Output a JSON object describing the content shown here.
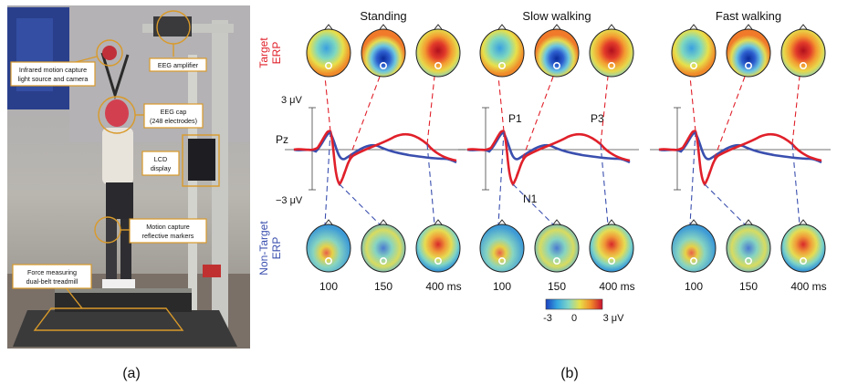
{
  "panel_a": {
    "caption": "(a)",
    "callouts": {
      "infrared": [
        "Infrared motion capture",
        "light source and camera"
      ],
      "eeg_amplifier": [
        "EEG amplifier"
      ],
      "eeg_cap": [
        "EEG cap",
        "(248 electrodes)"
      ],
      "lcd": [
        "LCD",
        "display"
      ],
      "motion_markers": [
        "Motion capture",
        "reflective markers"
      ],
      "treadmill": [
        "Force measuring",
        "dual-belt treadmill"
      ]
    }
  },
  "panel_b": {
    "caption": "(b)",
    "conditions": [
      "Standing",
      "Slow walking",
      "Fast walking"
    ],
    "row_label_target": [
      "Target",
      "ERP"
    ],
    "row_label_nontarget": [
      "Non-Target",
      "ERP"
    ],
    "y_top_label": "3 μV",
    "y_bottom_label": "−3 μV",
    "channel_label": "Pz",
    "component_labels": {
      "p1": "P1",
      "n1": "N1",
      "p3": "P3"
    },
    "time_labels": [
      "100",
      "150",
      "400 ms"
    ],
    "colorbar": {
      "min_label": "-3",
      "mid_label": "0",
      "max_label": "3 μV",
      "colors": [
        "#1a3fbf",
        "#36a7e0",
        "#7fd6c8",
        "#e8e04a",
        "#f08a2a",
        "#c8102e"
      ]
    },
    "series_colors": {
      "target": "#e0202a",
      "nontarget": "#3a4fae"
    }
  }
}
